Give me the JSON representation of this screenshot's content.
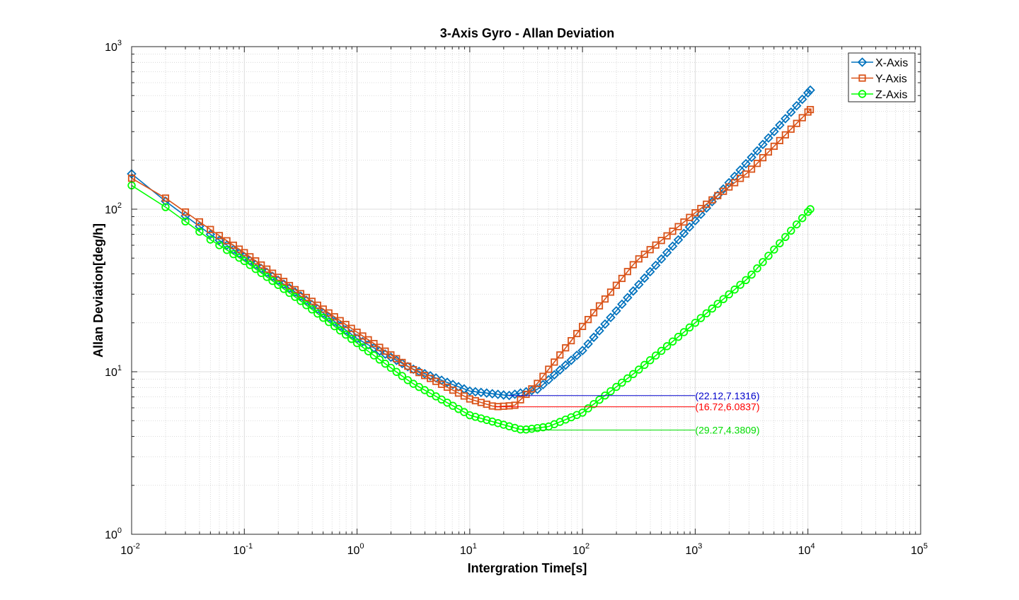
{
  "chart_data": {
    "type": "line",
    "title": "3-Axis Gyro - Allan Deviation",
    "xlabel": "Intergration Time[s]",
    "ylabel": "Allan Deviation[deg/h]",
    "x_scale": "log",
    "y_scale": "log",
    "xlim": [
      0.01,
      100000
    ],
    "ylim": [
      1,
      1000
    ],
    "x_ticks": [
      {
        "base": "10",
        "exp": "-2"
      },
      {
        "base": "10",
        "exp": "-1"
      },
      {
        "base": "10",
        "exp": "0"
      },
      {
        "base": "10",
        "exp": "1"
      },
      {
        "base": "10",
        "exp": "2"
      },
      {
        "base": "10",
        "exp": "3"
      },
      {
        "base": "10",
        "exp": "4"
      },
      {
        "base": "10",
        "exp": "5"
      }
    ],
    "y_ticks": [
      {
        "base": "10",
        "exp": "0"
      },
      {
        "base": "10",
        "exp": "1"
      },
      {
        "base": "10",
        "exp": "2"
      },
      {
        "base": "10",
        "exp": "3"
      }
    ],
    "grid": true,
    "legend_position": "top-right",
    "series": [
      {
        "name": "X-Axis",
        "color": "#0072BD",
        "marker": "diamond",
        "anchors": [
          [
            0.01,
            165
          ],
          [
            0.02,
            112
          ],
          [
            0.05,
            70
          ],
          [
            0.1,
            51
          ],
          [
            0.3,
            30
          ],
          [
            1,
            16
          ],
          [
            3,
            10.5
          ],
          [
            10,
            7.6
          ],
          [
            22.12,
            7.1316
          ],
          [
            40,
            7.8
          ],
          [
            100,
            13.5
          ],
          [
            300,
            33
          ],
          [
            1000,
            85
          ],
          [
            3000,
            200
          ],
          [
            10500,
            540
          ]
        ]
      },
      {
        "name": "Y-Axis",
        "color": "#D95319",
        "marker": "square",
        "anchors": [
          [
            0.01,
            155
          ],
          [
            0.02,
            117
          ],
          [
            0.05,
            75
          ],
          [
            0.1,
            54
          ],
          [
            0.3,
            31
          ],
          [
            1,
            17.5
          ],
          [
            3,
            10.5
          ],
          [
            10,
            6.8
          ],
          [
            16.72,
            6.0837
          ],
          [
            25,
            6.2
          ],
          [
            40,
            8.5
          ],
          [
            100,
            19
          ],
          [
            300,
            48
          ],
          [
            1000,
            95
          ],
          [
            3000,
            170
          ],
          [
            10500,
            410
          ]
        ]
      },
      {
        "name": "Z-Axis",
        "color": "#00FF00",
        "marker": "circle",
        "anchors": [
          [
            0.01,
            140
          ],
          [
            0.02,
            103
          ],
          [
            0.05,
            65
          ],
          [
            0.1,
            48
          ],
          [
            0.3,
            28
          ],
          [
            1,
            15
          ],
          [
            3,
            8.6
          ],
          [
            10,
            5.4
          ],
          [
            29.27,
            4.3809
          ],
          [
            50,
            4.6
          ],
          [
            100,
            5.6
          ],
          [
            300,
            10
          ],
          [
            1000,
            20
          ],
          [
            3000,
            38
          ],
          [
            10500,
            100
          ]
        ]
      }
    ],
    "annotations": [
      {
        "label": "(22.12,7.1316)",
        "x": 22.12,
        "y": 7.1316,
        "to_x": 1000,
        "color": "#0000CC"
      },
      {
        "label": "(16.72,6.0837)",
        "x": 16.72,
        "y": 6.0837,
        "to_x": 1000,
        "color": "#FF0000"
      },
      {
        "label": "(29.27,4.3809)",
        "x": 29.27,
        "y": 4.3809,
        "to_x": 1000,
        "color": "#00DD00"
      }
    ]
  }
}
